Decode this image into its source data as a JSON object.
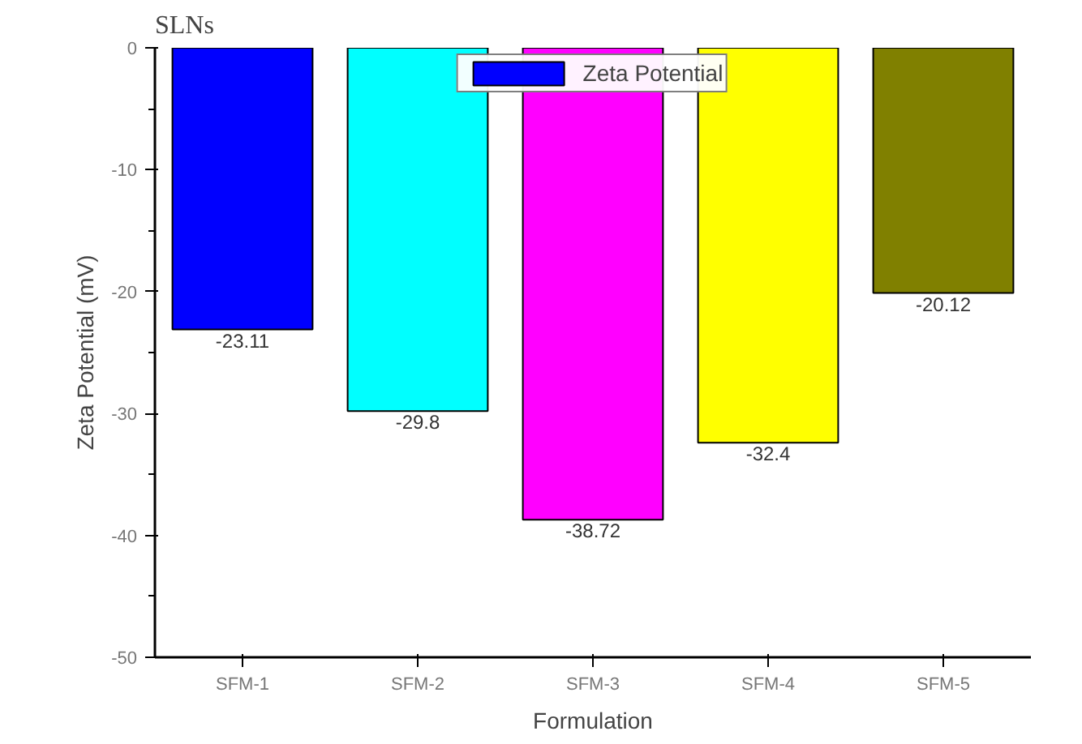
{
  "chart_data": {
    "type": "bar",
    "title": "SLNs",
    "xlabel": "Formulation",
    "ylabel": "Zeta Potential (mV)",
    "categories": [
      "SFM-1",
      "SFM-2",
      "SFM-3",
      "SFM-4",
      "SFM-5"
    ],
    "series": [
      {
        "name": "Zeta Potential",
        "color": "#0000ff",
        "colors": [
          "#0000ff",
          "#00ffff",
          "#ff00ff",
          "#ffff00",
          "#808000"
        ],
        "values": [
          -23.11,
          -29.8,
          -38.72,
          -32.4,
          -20.12
        ]
      }
    ],
    "ylim": [
      -50,
      0
    ],
    "yticks": [
      0,
      -10,
      -20,
      -30,
      -40,
      -50
    ],
    "data_labels": true,
    "legend": "top",
    "grid": false
  }
}
